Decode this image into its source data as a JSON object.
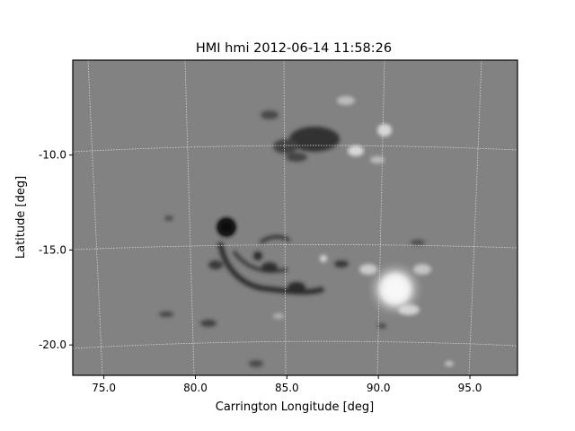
{
  "title": "HMI hmi 2012-06-14 11:58:26",
  "xlabel": "Carrington Longitude [deg]",
  "ylabel": "Latitude [deg]",
  "x_ticks": [
    {
      "label": "75.0",
      "value": 75.0
    },
    {
      "label": "80.0",
      "value": 80.0
    },
    {
      "label": "85.0",
      "value": 85.0
    },
    {
      "label": "90.0",
      "value": 90.0
    },
    {
      "label": "95.0",
      "value": 95.0
    }
  ],
  "y_ticks": [
    {
      "label": "-10.0",
      "value": -10.0
    },
    {
      "label": "-15.0",
      "value": -15.0
    },
    {
      "label": "-20.0",
      "value": -20.0
    }
  ],
  "x_range": [
    73.3,
    97.6
  ],
  "y_range": [
    -21.6,
    -5.0
  ],
  "grid": true,
  "colors": {
    "background": "#ffffff",
    "image_base": "#808080",
    "grid": "#d8d8d8",
    "negative_polarity": "#141414",
    "positive_polarity": "#f4f4f4"
  }
}
